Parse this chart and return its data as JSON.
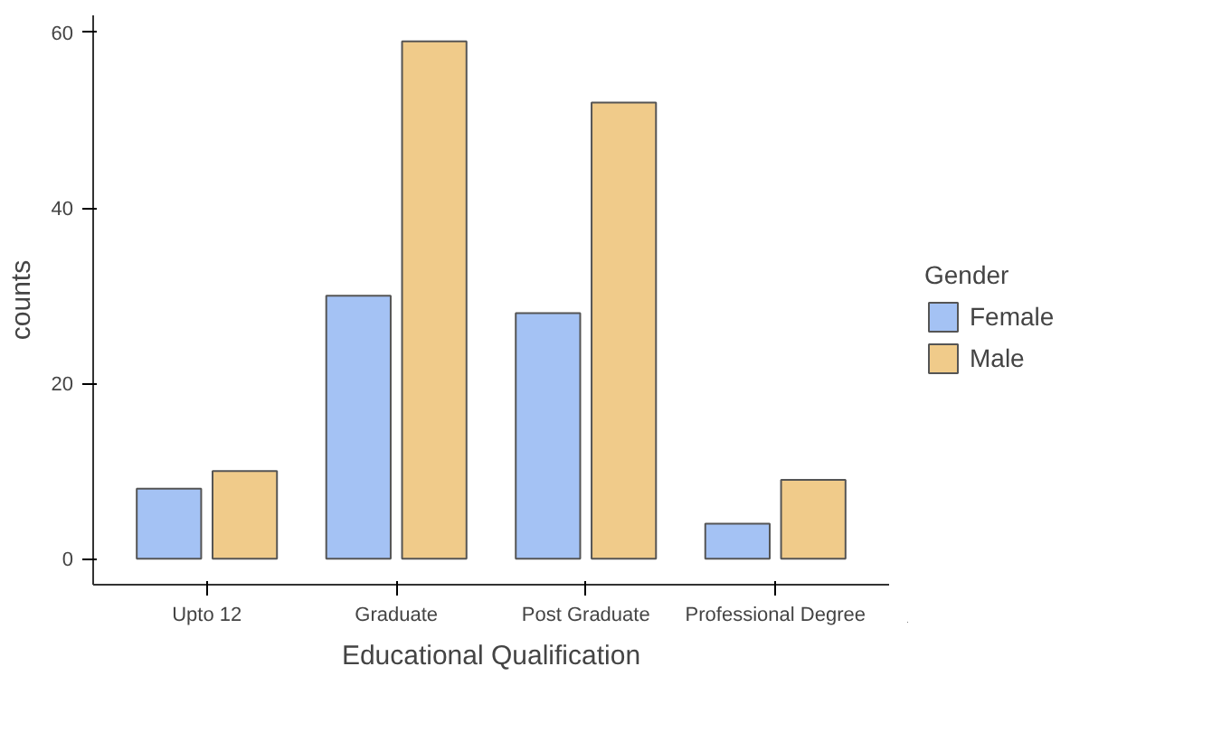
{
  "chart_data": {
    "type": "bar",
    "xlabel": "Educational Qualification",
    "ylabel": "counts",
    "legend_title": "Gender",
    "categories": [
      "Upto 12",
      "Graduate",
      "Post Graduate",
      "Professional Degree"
    ],
    "series": [
      {
        "name": "Female",
        "color": "#a4c2f4",
        "values": [
          8,
          30,
          28,
          4
        ]
      },
      {
        "name": "Male",
        "color": "#f0cb8a",
        "values": [
          10,
          59,
          52,
          9
        ]
      }
    ],
    "ylim": [
      -2.95,
      61.95
    ],
    "yticks": [
      0,
      20,
      40,
      60
    ],
    "grid": false,
    "legend": "right"
  }
}
